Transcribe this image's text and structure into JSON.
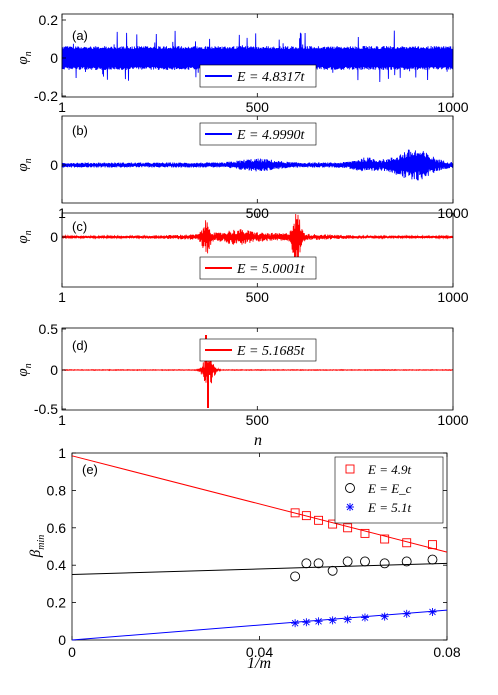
{
  "colors": {
    "blue": "#0000ff",
    "red": "#ff0000",
    "black": "#000000"
  },
  "chart_data": [
    {
      "type": "line",
      "panel": "(a)",
      "ylabel": "φ_n",
      "xlim": [
        1,
        1000
      ],
      "ylim": [
        -0.2,
        0.2
      ],
      "xticks": [
        "1",
        "500",
        "1000"
      ],
      "yticks": [
        "0.2",
        "0",
        "-0.2"
      ],
      "legend": [
        {
          "name": "E = 4.8317t",
          "color": "blue"
        }
      ],
      "legend_position": "lower-center",
      "series": [
        {
          "name": "E = 4.8317t",
          "color": "blue",
          "description": "extended wavefunction across all sites"
        }
      ]
    },
    {
      "type": "line",
      "panel": "(b)",
      "ylabel": "φ_n",
      "xlim": [
        1,
        1000
      ],
      "yticks": [
        "0"
      ],
      "xticks": [
        "1",
        "500",
        "1000"
      ],
      "legend": [
        {
          "name": "E = 4.9990t",
          "color": "blue"
        }
      ],
      "legend_position": "top-center",
      "series": [
        {
          "name": "E = 4.9990t",
          "color": "blue",
          "description": "amplitude grows toward n ≈ 900"
        }
      ]
    },
    {
      "type": "line",
      "panel": "(c)",
      "ylabel": "φ_n",
      "xlim": [
        1,
        1000
      ],
      "yticks": [
        "0"
      ],
      "xticks": [
        "1",
        "500",
        "1000"
      ],
      "legend": [
        {
          "name": "E = 5.0001t",
          "color": "red"
        }
      ],
      "legend_position": "bottom-center",
      "series": [
        {
          "name": "E = 5.0001t",
          "color": "red",
          "description": "peaks near n ≈ 370 and n ≈ 600"
        }
      ]
    },
    {
      "type": "line",
      "panel": "(d)",
      "ylabel": "φ_n",
      "xlabel": "n",
      "xlim": [
        1,
        1000
      ],
      "ylim": [
        -0.5,
        0.5
      ],
      "xticks": [
        "1",
        "500",
        "1000"
      ],
      "yticks": [
        "0.5",
        "0",
        "-0.5"
      ],
      "legend": [
        {
          "name": "E = 5.1685t",
          "color": "red"
        }
      ],
      "legend_position": "top-center",
      "series": [
        {
          "name": "E = 5.1685t",
          "color": "red",
          "description": "localized near n ≈ 370"
        }
      ]
    },
    {
      "type": "scatter",
      "panel": "(e)",
      "xlabel": "1/m",
      "ylabel": "β_min",
      "xlim": [
        0,
        0.08
      ],
      "ylim": [
        0,
        1
      ],
      "xticks": [
        0,
        0.04,
        0.08
      ],
      "xtick_labels": [
        "0",
        "0.04",
        "0.08"
      ],
      "yticks": [
        0,
        0.2,
        0.4,
        0.6,
        0.8,
        1
      ],
      "ytick_labels": [
        "0",
        "0.2",
        "0.4",
        "0.6",
        "0.8",
        "1"
      ],
      "legend_position": "top-right",
      "series": [
        {
          "name": "E = 4.9t",
          "marker": "square",
          "color": "red",
          "points": [
            [
              0.0476,
              0.68
            ],
            [
              0.05,
              0.665
            ],
            [
              0.0526,
              0.64
            ],
            [
              0.0556,
              0.62
            ],
            [
              0.0588,
              0.6
            ],
            [
              0.0625,
              0.57
            ],
            [
              0.0667,
              0.54
            ],
            [
              0.0714,
              0.52
            ],
            [
              0.0769,
              0.51
            ]
          ],
          "fit": [
            [
              0,
              0.985
            ],
            [
              0.08,
              0.47
            ]
          ]
        },
        {
          "name": "E = E_c",
          "marker": "circle",
          "color": "black",
          "points": [
            [
              0.0476,
              0.34
            ],
            [
              0.05,
              0.41
            ],
            [
              0.0526,
              0.41
            ],
            [
              0.0556,
              0.37
            ],
            [
              0.0588,
              0.42
            ],
            [
              0.0625,
              0.42
            ],
            [
              0.0667,
              0.41
            ],
            [
              0.0714,
              0.42
            ],
            [
              0.0769,
              0.43
            ]
          ],
          "fit": [
            [
              0,
              0.35
            ],
            [
              0.08,
              0.41
            ]
          ]
        },
        {
          "name": "E = 5.1t",
          "marker": "star",
          "color": "blue",
          "points": [
            [
              0.0476,
              0.09
            ],
            [
              0.05,
              0.095
            ],
            [
              0.0526,
              0.1
            ],
            [
              0.0556,
              0.105
            ],
            [
              0.0588,
              0.11
            ],
            [
              0.0625,
              0.12
            ],
            [
              0.0667,
              0.125
            ],
            [
              0.0714,
              0.14
            ],
            [
              0.0769,
              0.15
            ]
          ],
          "fit": [
            [
              0,
              0.0
            ],
            [
              0.08,
              0.16
            ]
          ]
        }
      ]
    }
  ]
}
